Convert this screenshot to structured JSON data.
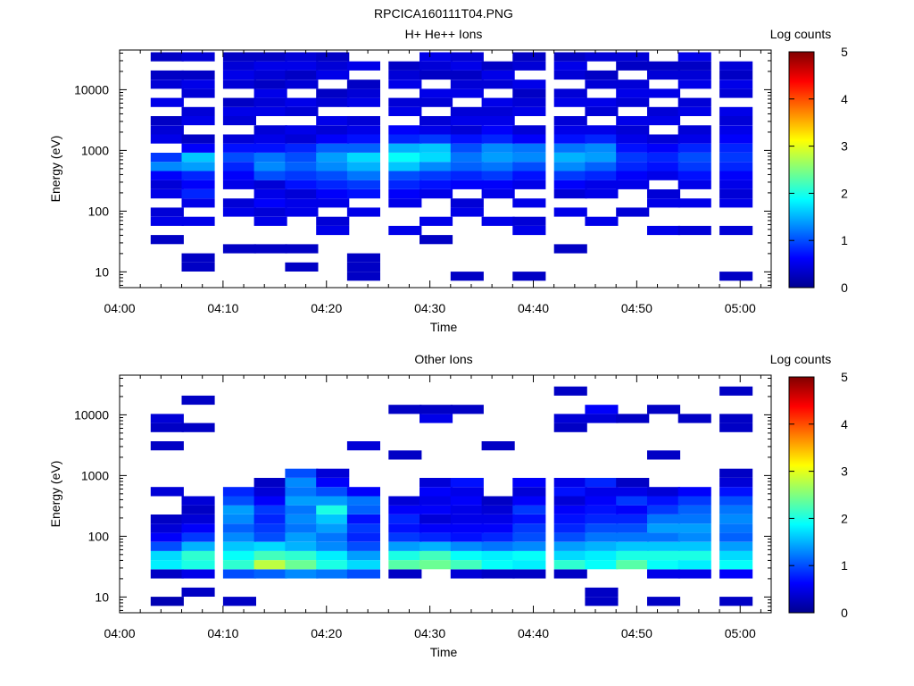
{
  "figure_title": "RPCICA160111T04.PNG",
  "chart_data": [
    {
      "type": "heatmap",
      "title": "H+ He++ Ions",
      "xlabel": "Time",
      "ylabel": "Energy (eV)",
      "colorbar_label": "Log counts",
      "colorbar_ticks": [
        "0",
        "1",
        "2",
        "3",
        "4",
        "5"
      ],
      "zlim": [
        0,
        5
      ],
      "yscale": "log",
      "ylim": [
        5.5,
        45000
      ],
      "xlim": [
        "04:00",
        "05:03"
      ],
      "x_tick_labels": [
        "04:00",
        "04:10",
        "04:20",
        "04:30",
        "04:40",
        "04:50",
        "05:00"
      ],
      "y_tick_labels": [
        "10",
        "100",
        "1000",
        "10000"
      ],
      "colormap": [
        "#00008f",
        "#0000ff",
        "#00ffff",
        "#ffff00",
        "#ff0000",
        "#800000"
      ],
      "time_bins_start": [
        "04:03",
        "04:06",
        "04:10",
        "04:13",
        "04:16",
        "04:19",
        "04:22",
        "04:26",
        "04:29",
        "04:32",
        "04:35",
        "04:38",
        "04:42",
        "04:45",
        "04:48",
        "04:51",
        "04:54",
        "04:58"
      ],
      "bin_minutes": 3.2,
      "energy_bins_ev": [
        8.5,
        12,
        17,
        24,
        34,
        48,
        68,
        96,
        136,
        192,
        272,
        384,
        545,
        770,
        1090,
        1540,
        2180,
        3080,
        4360,
        6160,
        8710,
        12300,
        17400,
        24600,
        34800
      ],
      "log_counts": [
        [
          0.0,
          0.0,
          0.0,
          0.0,
          0.3,
          0.0,
          0.5,
          0.4,
          0.0,
          0.5,
          0.4,
          0.6,
          1.3,
          0.9,
          0.0,
          0.5,
          0.4,
          0.3,
          0.0,
          0.5,
          0.0,
          0.4,
          0.3,
          0.0,
          0.3
        ],
        [
          0.0,
          0.3,
          0.3,
          0.0,
          0.0,
          0.0,
          0.5,
          0.0,
          0.5,
          0.8,
          0.6,
          0.8,
          1.4,
          1.6,
          0.6,
          0.3,
          0.0,
          0.5,
          0.4,
          0.0,
          0.4,
          0.5,
          0.3,
          0.0,
          0.4
        ],
        [
          0.0,
          0.0,
          0.0,
          0.3,
          0.0,
          0.0,
          0.0,
          0.5,
          0.4,
          0.0,
          0.5,
          0.6,
          0.8,
          1.0,
          0.7,
          0.4,
          0.0,
          0.4,
          0.5,
          0.3,
          0.0,
          0.4,
          0.5,
          0.4,
          0.3
        ],
        [
          0.0,
          0.0,
          0.0,
          0.3,
          0.0,
          0.0,
          0.5,
          0.4,
          0.6,
          0.5,
          0.4,
          1.0,
          1.3,
          1.2,
          0.7,
          0.5,
          0.4,
          0.0,
          0.5,
          0.4,
          0.5,
          0.3,
          0.4,
          0.5,
          0.3
        ],
        [
          0.0,
          0.3,
          0.0,
          0.3,
          0.0,
          0.0,
          0.0,
          0.5,
          0.5,
          0.4,
          0.7,
          0.9,
          1.1,
          1.0,
          0.8,
          0.4,
          0.5,
          0.0,
          0.4,
          0.5,
          0.0,
          0.4,
          0.3,
          0.5,
          0.4
        ],
        [
          0.0,
          0.0,
          0.0,
          0.0,
          0.0,
          0.5,
          0.4,
          0.0,
          0.5,
          0.6,
          0.8,
          1.0,
          1.3,
          1.4,
          1.1,
          0.6,
          0.4,
          0.5,
          0.0,
          0.4,
          0.3,
          0.0,
          0.5,
          0.4,
          0.3
        ],
        [
          0.3,
          0.3,
          0.3,
          0.0,
          0.0,
          0.0,
          0.0,
          0.5,
          0.0,
          0.7,
          0.9,
          1.2,
          1.5,
          1.7,
          1.1,
          0.7,
          0.5,
          0.4,
          0.0,
          0.5,
          0.4,
          0.3,
          0.0,
          0.5,
          0.0
        ],
        [
          0.0,
          0.0,
          0.0,
          0.0,
          0.0,
          0.5,
          0.0,
          0.0,
          0.5,
          0.6,
          0.8,
          1.0,
          1.6,
          1.9,
          1.5,
          0.8,
          0.6,
          0.0,
          0.5,
          0.4,
          0.0,
          0.5,
          0.4,
          0.3,
          0.0
        ],
        [
          0.0,
          0.0,
          0.0,
          0.0,
          0.3,
          0.0,
          0.5,
          0.0,
          0.0,
          0.5,
          0.7,
          0.9,
          1.3,
          1.7,
          1.6,
          0.9,
          0.5,
          0.4,
          0.0,
          0.4,
          0.5,
          0.0,
          0.3,
          0.4,
          0.5
        ],
        [
          0.3,
          0.0,
          0.0,
          0.0,
          0.0,
          0.0,
          0.0,
          0.5,
          0.4,
          0.0,
          0.6,
          0.8,
          1.1,
          1.2,
          1.0,
          0.7,
          0.4,
          0.5,
          0.4,
          0.0,
          0.5,
          0.4,
          0.3,
          0.5,
          0.4
        ],
        [
          0.0,
          0.0,
          0.0,
          0.0,
          0.0,
          0.0,
          0.5,
          0.0,
          0.0,
          0.5,
          0.6,
          0.9,
          1.2,
          1.4,
          1.3,
          0.8,
          0.6,
          0.5,
          0.4,
          0.5,
          0.0,
          0.4,
          0.5,
          0.3,
          0.0
        ],
        [
          0.3,
          0.0,
          0.0,
          0.0,
          0.0,
          0.5,
          0.4,
          0.0,
          0.5,
          0.0,
          0.5,
          0.7,
          1.0,
          1.3,
          1.2,
          0.6,
          0.4,
          0.0,
          0.5,
          0.4,
          0.3,
          0.5,
          0.0,
          0.4,
          0.3
        ],
        [
          0.0,
          0.0,
          0.0,
          0.3,
          0.0,
          0.0,
          0.0,
          0.5,
          0.0,
          0.4,
          0.6,
          0.9,
          1.3,
          1.5,
          1.2,
          0.7,
          0.5,
          0.4,
          0.0,
          0.5,
          0.4,
          0.0,
          0.4,
          0.5,
          0.3
        ],
        [
          0.0,
          0.0,
          0.0,
          0.0,
          0.0,
          0.0,
          0.5,
          0.0,
          0.0,
          0.5,
          0.5,
          0.8,
          1.1,
          1.4,
          1.3,
          0.8,
          0.5,
          0.0,
          0.4,
          0.5,
          0.0,
          0.4,
          0.3,
          0.0,
          0.4
        ],
        [
          0.0,
          0.0,
          0.0,
          0.0,
          0.0,
          0.0,
          0.0,
          0.4,
          0.0,
          0.0,
          0.5,
          0.6,
          0.8,
          0.9,
          0.7,
          0.5,
          0.4,
          0.5,
          0.0,
          0.4,
          0.5,
          0.4,
          0.0,
          0.3,
          0.4
        ],
        [
          0.0,
          0.0,
          0.0,
          0.0,
          0.0,
          0.5,
          0.0,
          0.0,
          0.5,
          0.4,
          0.0,
          0.5,
          0.7,
          0.8,
          0.6,
          0.4,
          0.0,
          0.5,
          0.4,
          0.0,
          0.5,
          0.0,
          0.4,
          0.3,
          0.0
        ],
        [
          0.0,
          0.0,
          0.0,
          0.0,
          0.0,
          0.4,
          0.0,
          0.0,
          0.5,
          0.0,
          0.5,
          0.7,
          0.9,
          1.0,
          0.8,
          0.5,
          0.4,
          0.0,
          0.5,
          0.4,
          0.0,
          0.5,
          0.4,
          0.3,
          0.5
        ],
        [
          0.3,
          0.0,
          0.0,
          0.0,
          0.0,
          0.4,
          0.0,
          0.0,
          0.5,
          0.4,
          0.5,
          0.6,
          0.8,
          0.9,
          0.8,
          0.6,
          0.5,
          0.4,
          0.5,
          0.0,
          0.4,
          0.5,
          0.3,
          0.4,
          0.0
        ]
      ]
    },
    {
      "type": "heatmap",
      "title": "Other Ions",
      "xlabel": "Time",
      "ylabel": "Energy (eV)",
      "colorbar_label": "Log counts",
      "colorbar_ticks": [
        "0",
        "1",
        "2",
        "3",
        "4",
        "5"
      ],
      "zlim": [
        0,
        5
      ],
      "yscale": "log",
      "ylim": [
        5.5,
        45000
      ],
      "xlim": [
        "04:00",
        "05:03"
      ],
      "x_tick_labels": [
        "04:00",
        "04:10",
        "04:20",
        "04:30",
        "04:40",
        "04:50",
        "05:00"
      ],
      "y_tick_labels": [
        "10",
        "100",
        "1000",
        "10000"
      ],
      "colormap": [
        "#00008f",
        "#0000ff",
        "#00ffff",
        "#ffff00",
        "#ff0000",
        "#800000"
      ],
      "time_bins_start": [
        "04:03",
        "04:06",
        "04:10",
        "04:13",
        "04:16",
        "04:19",
        "04:22",
        "04:26",
        "04:29",
        "04:32",
        "04:35",
        "04:38",
        "04:42",
        "04:45",
        "04:48",
        "04:51",
        "04:54",
        "04:58"
      ],
      "bin_minutes": 3.2,
      "energy_bins_ev": [
        8.5,
        12,
        17,
        24,
        34,
        48,
        68,
        96,
        136,
        192,
        272,
        384,
        545,
        770,
        1090,
        1540,
        2180,
        3080,
        4360,
        6160,
        8710,
        12300,
        17400,
        24600,
        34800
      ],
      "log_counts": [
        [
          0.2,
          0.0,
          0.0,
          0.3,
          1.8,
          1.7,
          1.0,
          0.6,
          0.4,
          0.3,
          0.0,
          0.0,
          0.4,
          0.0,
          0.0,
          0.0,
          0.0,
          0.3,
          0.0,
          0.3,
          0.4,
          0.0,
          0.0,
          0.0,
          0.0
        ],
        [
          0.0,
          0.3,
          0.0,
          0.5,
          2.0,
          2.1,
          1.5,
          0.9,
          0.6,
          0.4,
          0.3,
          0.4,
          0.0,
          0.0,
          0.0,
          0.0,
          0.0,
          0.0,
          0.0,
          0.3,
          0.0,
          0.0,
          0.3,
          0.0,
          0.0
        ],
        [
          0.3,
          0.0,
          0.0,
          1.0,
          2.1,
          1.9,
          1.6,
          1.3,
          1.1,
          1.3,
          1.4,
          1.0,
          0.8,
          0.0,
          0.0,
          0.0,
          0.0,
          0.0,
          0.0,
          0.0,
          0.0,
          0.0,
          0.0,
          0.0,
          0.0
        ],
        [
          0.0,
          0.0,
          0.0,
          1.1,
          2.8,
          2.2,
          1.7,
          1.0,
          0.9,
          0.8,
          0.9,
          0.6,
          0.4,
          0.3,
          0.0,
          0.0,
          0.0,
          0.0,
          0.0,
          0.0,
          0.0,
          0.0,
          0.0,
          0.0,
          0.0
        ],
        [
          0.0,
          0.0,
          0.0,
          1.3,
          2.4,
          2.1,
          1.5,
          1.4,
          1.2,
          1.3,
          1.2,
          1.4,
          1.2,
          1.3,
          1.0,
          0.0,
          0.0,
          0.0,
          0.0,
          0.0,
          0.0,
          0.0,
          0.0,
          0.0,
          0.0
        ],
        [
          0.0,
          0.0,
          0.0,
          1.2,
          2.0,
          1.8,
          1.3,
          1.2,
          1.4,
          1.6,
          2.0,
          1.4,
          1.0,
          0.6,
          0.4,
          0.0,
          0.0,
          0.0,
          0.0,
          0.0,
          0.0,
          0.0,
          0.0,
          0.0,
          0.0
        ],
        [
          0.0,
          0.0,
          0.0,
          1.0,
          1.7,
          1.4,
          1.0,
          0.8,
          0.9,
          0.7,
          1.1,
          1.2,
          0.6,
          0.0,
          0.0,
          0.0,
          0.0,
          0.4,
          0.0,
          0.0,
          0.0,
          0.0,
          0.0,
          0.0,
          0.0
        ],
        [
          0.0,
          0.0,
          0.0,
          0.3,
          2.3,
          2.0,
          1.4,
          0.9,
          0.7,
          0.8,
          0.6,
          0.4,
          0.0,
          0.0,
          0.0,
          0.0,
          0.3,
          0.0,
          0.0,
          0.0,
          0.0,
          0.3,
          0.0,
          0.0,
          0.0
        ],
        [
          0.0,
          0.0,
          0.0,
          0.0,
          2.4,
          2.2,
          1.5,
          0.8,
          0.6,
          0.4,
          0.6,
          0.5,
          0.6,
          0.4,
          0.0,
          0.0,
          0.0,
          0.0,
          0.0,
          0.0,
          0.5,
          0.3,
          0.0,
          0.0,
          0.0
        ],
        [
          0.0,
          0.0,
          0.0,
          0.4,
          2.2,
          1.9,
          1.3,
          0.7,
          0.6,
          0.5,
          0.5,
          0.6,
          0.5,
          0.7,
          0.0,
          0.0,
          0.0,
          0.0,
          0.0,
          0.0,
          0.0,
          0.3,
          0.0,
          0.0,
          0.0
        ],
        [
          0.0,
          0.0,
          0.0,
          0.3,
          1.9,
          1.8,
          1.2,
          0.8,
          0.6,
          0.5,
          0.4,
          0.3,
          0.0,
          0.0,
          0.0,
          0.0,
          0.0,
          0.3,
          0.0,
          0.0,
          0.0,
          0.0,
          0.0,
          0.0,
          0.0
        ],
        [
          0.0,
          0.0,
          0.0,
          0.3,
          1.8,
          1.9,
          1.3,
          1.0,
          0.9,
          0.7,
          0.9,
          0.6,
          0.4,
          0.6,
          0.0,
          0.0,
          0.0,
          0.0,
          0.0,
          0.0,
          0.0,
          0.0,
          0.0,
          0.0,
          0.0
        ],
        [
          0.0,
          0.0,
          0.0,
          0.3,
          2.1,
          1.7,
          1.4,
          1.0,
          0.8,
          0.7,
          0.6,
          0.4,
          0.7,
          0.5,
          0.0,
          0.0,
          0.0,
          0.0,
          0.0,
          0.3,
          0.4,
          0.0,
          0.0,
          0.3,
          0.0
        ],
        [
          0.3,
          0.3,
          0.0,
          0.0,
          1.9,
          1.8,
          1.5,
          1.2,
          1.0,
          0.8,
          0.7,
          0.6,
          0.5,
          0.8,
          0.0,
          0.0,
          0.0,
          0.0,
          0.0,
          0.0,
          0.4,
          0.6,
          0.0,
          0.0,
          0.0
        ],
        [
          0.0,
          0.0,
          0.0,
          0.0,
          2.3,
          2.0,
          1.6,
          1.2,
          1.0,
          0.8,
          0.6,
          0.9,
          0.5,
          0.3,
          0.0,
          0.0,
          0.0,
          0.0,
          0.0,
          0.0,
          0.3,
          0.0,
          0.0,
          0.0,
          0.0
        ],
        [
          0.3,
          0.0,
          0.0,
          0.5,
          1.9,
          2.0,
          1.6,
          1.2,
          1.4,
          1.2,
          0.9,
          0.7,
          0.4,
          0.0,
          0.0,
          0.0,
          0.3,
          0.0,
          0.0,
          0.0,
          0.0,
          0.3,
          0.0,
          0.0,
          0.0
        ],
        [
          0.0,
          0.0,
          0.0,
          0.5,
          1.8,
          2.0,
          1.6,
          1.3,
          1.4,
          1.2,
          1.1,
          0.9,
          0.6,
          0.0,
          0.0,
          0.0,
          0.0,
          0.0,
          0.0,
          0.0,
          0.3,
          0.0,
          0.0,
          0.0,
          0.0
        ],
        [
          0.3,
          0.0,
          0.0,
          0.6,
          1.9,
          1.7,
          1.4,
          1.1,
          1.2,
          1.3,
          1.2,
          1.0,
          0.7,
          0.4,
          0.3,
          0.0,
          0.0,
          0.0,
          0.0,
          0.3,
          0.3,
          0.0,
          0.0,
          0.3,
          0.0
        ]
      ]
    }
  ]
}
